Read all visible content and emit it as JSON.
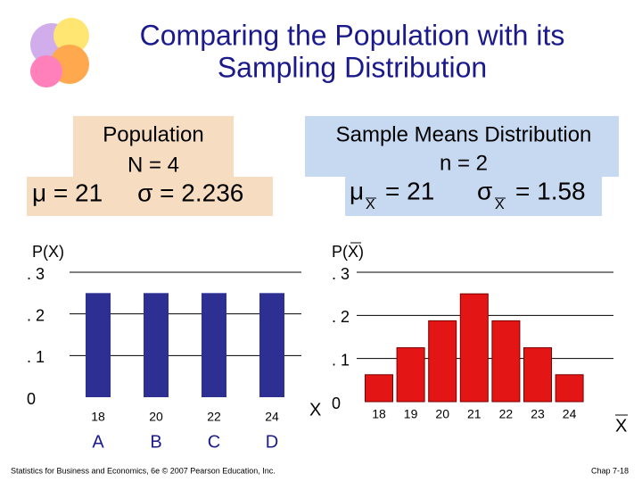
{
  "title_lines": [
    "Comparing the Population with its",
    "Sampling Distribution"
  ],
  "population_box": {
    "lines": [
      "Population",
      "N = 4"
    ],
    "stats": "μ = 21     σ = 2.236"
  },
  "sample_box": {
    "lines": [
      "Sample Means Distribution",
      "n = 2"
    ],
    "stats": {
      "mean_symbol": "μ",
      "mean_subscript": "X",
      "mean_value": "= 21",
      "sd_symbol": "σ",
      "sd_subscript": "X",
      "sd_value": "= 1.58"
    }
  },
  "chart_data": [
    {
      "type": "bar",
      "y_label": "P(X)",
      "x_label": "X",
      "categories": [
        "18",
        "20",
        "22",
        "24"
      ],
      "category_letters": [
        "A",
        "B",
        "C",
        "D"
      ],
      "values": [
        0.25,
        0.25,
        0.25,
        0.25
      ],
      "color": "#2d3092",
      "ylim": [
        0,
        0.3
      ],
      "yticks": [
        {
          "value": 0,
          "label": "0"
        },
        {
          "value": 0.1,
          "label": ". 1"
        },
        {
          "value": 0.2,
          "label": ". 2"
        },
        {
          "value": 0.3,
          "label": ". 3"
        }
      ],
      "grid": true
    },
    {
      "type": "bar",
      "y_label": "P(X)",
      "x_label": "X",
      "categories": [
        "18",
        "19",
        "20",
        "21",
        "22",
        "23",
        "24"
      ],
      "values": [
        0.0625,
        0.125,
        0.1875,
        0.25,
        0.1875,
        0.125,
        0.0625
      ],
      "color": "#e31515",
      "ylim": [
        0,
        0.3
      ],
      "yticks": [
        {
          "value": 0,
          "label": "0"
        },
        {
          "value": 0.1,
          "label": ". 1"
        },
        {
          "value": 0.2,
          "label": ". 2"
        },
        {
          "value": 0.3,
          "label": ". 3"
        }
      ],
      "grid": true
    }
  ],
  "footer": {
    "left": "Statistics for Business and Economics, 6e © 2007 Pearson Education, Inc.",
    "right": "Chap 7-18"
  }
}
